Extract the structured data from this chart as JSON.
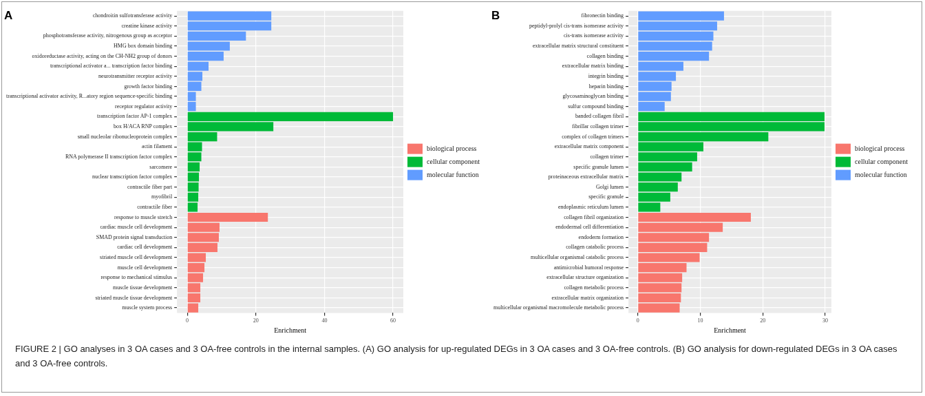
{
  "chart_data": [
    {
      "type": "bar",
      "orientation": "horizontal",
      "title": "A",
      "xlabel": "Enrichment",
      "grid": true,
      "legend": "right",
      "xlim": [
        -3,
        63
      ],
      "xticks": [
        0,
        20,
        40,
        60
      ],
      "categories": [
        "chondroitin sulfotransferase activity",
        "creatine kinase activity",
        "phosphotransferase activity, nitrogenous group as acceptor",
        "HMG box domain binding",
        "oxidoreductase activity, acting on the CH-NH2 group of donors",
        "transcriptional activator a... transcription factor binding",
        "neurotransmitter receptor activity",
        "growth factor binding",
        "transcriptional activator activity, R...atory region sequence-specific binding",
        "receptor regulator activity",
        "transcription factor AP-1 complex",
        "box H/ACA RNP complex",
        "small nucleolar ribonucleoprotein complex",
        "actin filament",
        "RNA polymerase II transcription factor complex",
        "sarcomere",
        "nuclear transcription factor complex",
        "contractile fiber part",
        "myofibril",
        "contractile fiber",
        "response to muscle stretch",
        "cardiac muscle cell development",
        "SMAD protein signal transduction",
        "cardiac cell development",
        "striated muscle cell development",
        "muscle cell development",
        "response to mechanical stimulus",
        "muscle tissue development",
        "striated muscle tissue development",
        "muscle system process"
      ],
      "series": [
        {
          "name": "biological process",
          "color": "#f8766d",
          "values": [
            null,
            null,
            null,
            null,
            null,
            null,
            null,
            null,
            null,
            null,
            null,
            null,
            null,
            null,
            null,
            null,
            null,
            null,
            null,
            null,
            23.5,
            9.4,
            9.2,
            8.8,
            5.4,
            5.0,
            4.6,
            3.8,
            3.8,
            3.2
          ]
        },
        {
          "name": "cellular component",
          "color": "#00ba38",
          "values": [
            null,
            null,
            null,
            null,
            null,
            null,
            null,
            null,
            null,
            null,
            60,
            25.1,
            8.7,
            4.3,
            4.1,
            3.6,
            3.4,
            3.3,
            3.2,
            3.0,
            null,
            null,
            null,
            null,
            null,
            null,
            null,
            null,
            null,
            null
          ]
        },
        {
          "name": "molecular function",
          "color": "#619cff",
          "values": [
            24.5,
            24.5,
            17.1,
            12.4,
            10.6,
            6.2,
            4.4,
            4.1,
            2.5,
            2.5,
            null,
            null,
            null,
            null,
            null,
            null,
            null,
            null,
            null,
            null,
            null,
            null,
            null,
            null,
            null,
            null,
            null,
            null,
            null,
            null
          ]
        }
      ],
      "annotations": [
        "FIGURE 2 | GO analyses in 3 OA cases and 3 OA-free controls in the internal samples. (A) GO analysis for up-regulated DEGs in 3 OA cases and 3 OA-free controls. (B) GO analysis for down-regulated DEGs in 3 OA cases and 3 OA-free controls."
      ]
    },
    {
      "type": "bar",
      "orientation": "horizontal",
      "title": "B",
      "xlabel": "Enrichment",
      "grid": true,
      "legend": "right",
      "xlim": [
        -1.5,
        31
      ],
      "xticks": [
        0,
        10,
        20,
        30
      ],
      "categories": [
        "fibronectin binding",
        "peptidyl-prolyl cis-trans isomerase activity",
        "cis-trans isomerase activity",
        "extracellular matrix structural constituent",
        "collagen binding",
        "extracellular matrix binding",
        "integrin binding",
        "heparin binding",
        "glycosaminoglycan binding",
        "sulfur compound binding",
        "banded collagen fibril",
        "fibrillar collagen trimer",
        "complex of collagen trimers",
        "extracellular matrix component",
        "collagen trimer",
        "specific granule lumen",
        "proteinaceous extracellular matrix",
        "Golgi lumen",
        "specific granule",
        "endoplasmic reticulum lumen",
        "collagen fibril organization",
        "endodermal cell differentiation",
        "endoderm formation",
        "collagen catabolic process",
        "multicellular organismal catabolic process",
        "antimicrobial humoral response",
        "extracellular structure organization",
        "collagen metabolic process",
        "extracellular matrix organization",
        "multicellular organismal macromolecule metabolic process"
      ],
      "series": [
        {
          "name": "biological process",
          "color": "#f8766d",
          "values": [
            null,
            null,
            null,
            null,
            null,
            null,
            null,
            null,
            null,
            null,
            null,
            null,
            null,
            null,
            null,
            null,
            null,
            null,
            null,
            null,
            18.1,
            13.6,
            11.4,
            11.1,
            9.9,
            7.8,
            7.1,
            7.0,
            6.9,
            6.7
          ]
        },
        {
          "name": "cellular component",
          "color": "#00ba38",
          "values": [
            null,
            null,
            null,
            null,
            null,
            null,
            null,
            null,
            null,
            null,
            29.9,
            29.9,
            20.9,
            10.5,
            9.5,
            8.7,
            7.0,
            6.4,
            5.2,
            3.6,
            null,
            null,
            null,
            null,
            null,
            null,
            null,
            null,
            null,
            null
          ]
        },
        {
          "name": "molecular function",
          "color": "#619cff",
          "values": [
            13.8,
            12.7,
            12.1,
            11.9,
            11.4,
            7.3,
            6.1,
            5.4,
            5.3,
            4.3,
            null,
            null,
            null,
            null,
            null,
            null,
            null,
            null,
            null,
            null,
            null,
            null,
            null,
            null,
            null,
            null,
            null,
            null,
            null,
            null
          ]
        }
      ]
    }
  ]
}
